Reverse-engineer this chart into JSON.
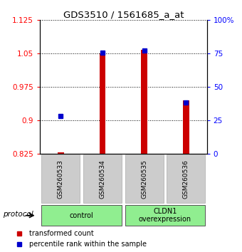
{
  "title": "GDS3510 / 1561685_a_at",
  "samples": [
    "GSM260533",
    "GSM260534",
    "GSM260535",
    "GSM260536"
  ],
  "red_values": [
    0.828,
    1.05,
    1.058,
    0.945
  ],
  "blue_values": [
    0.91,
    1.052,
    1.056,
    0.94
  ],
  "ymin": 0.825,
  "ymax": 1.125,
  "yticks_left": [
    0.825,
    0.9,
    0.975,
    1.05,
    1.125
  ],
  "yticks_right": [
    0,
    25,
    50,
    75,
    100
  ],
  "ytick_labels_left": [
    "0.825",
    "0.9",
    "0.975",
    "1.05",
    "1.125"
  ],
  "ytick_labels_right": [
    "0",
    "25",
    "50",
    "75",
    "100%"
  ],
  "groups": [
    {
      "label": "control",
      "samples": [
        0,
        1
      ],
      "color": "#90EE90"
    },
    {
      "label": "CLDN1\noverexpression",
      "samples": [
        2,
        3
      ],
      "color": "#90EE90"
    }
  ],
  "protocol_label": "protocol",
  "bar_color": "#CC0000",
  "dot_color": "#0000CC",
  "legend_red": "transformed count",
  "legend_blue": "percentile rank within the sample",
  "bar_width": 0.15
}
